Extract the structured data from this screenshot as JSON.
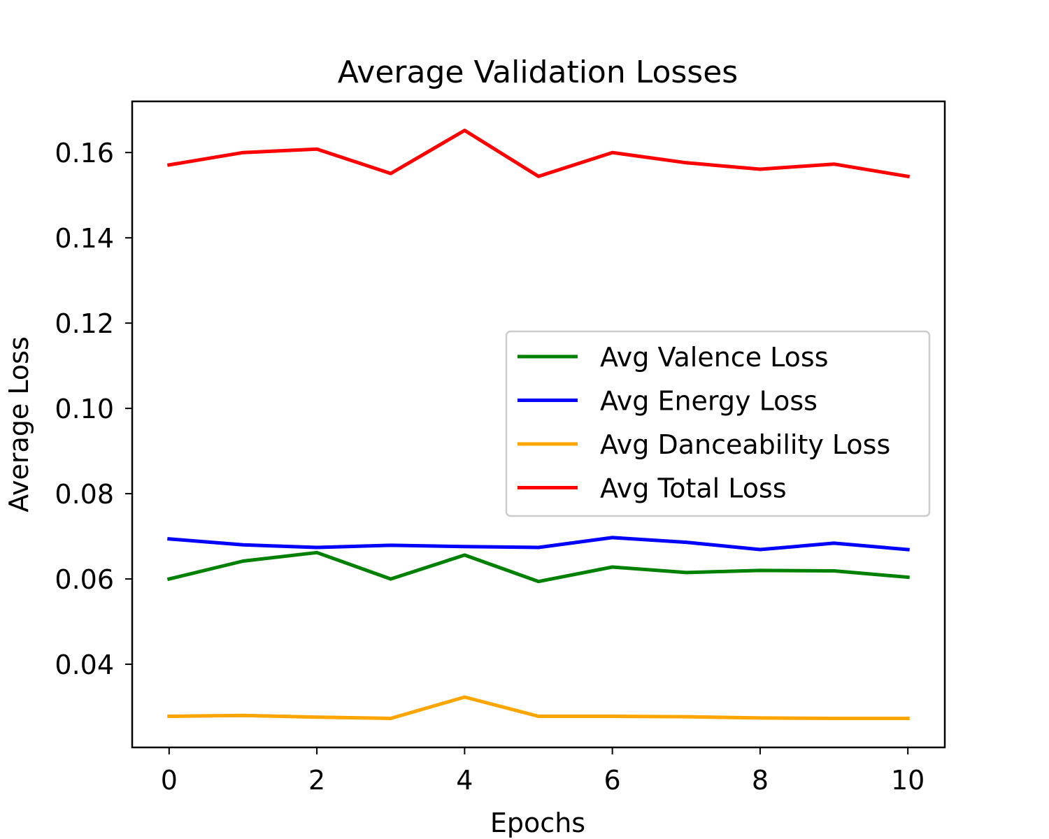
{
  "chart_data": {
    "type": "line",
    "title": "Average Validation Losses",
    "xlabel": "Epochs",
    "ylabel": "Average Loss",
    "xlim": [
      -0.5,
      10.5
    ],
    "ylim": [
      0.0205,
      0.172
    ],
    "x_ticks": [
      0,
      2,
      4,
      6,
      8,
      10
    ],
    "x_tick_labels": [
      "0",
      "2",
      "4",
      "6",
      "8",
      "10"
    ],
    "y_ticks": [
      0.04,
      0.06,
      0.08,
      0.1,
      0.12,
      0.14,
      0.16
    ],
    "y_tick_labels": [
      "0.04",
      "0.06",
      "0.08",
      "0.10",
      "0.12",
      "0.14",
      "0.16"
    ],
    "grid": false,
    "legend_position": "center-right",
    "x": [
      0,
      1,
      2,
      3,
      4,
      5,
      6,
      7,
      8,
      9,
      10
    ],
    "series": [
      {
        "name": "Avg Valence Loss",
        "color": "#008000",
        "values": [
          0.06,
          0.0642,
          0.0662,
          0.06,
          0.0656,
          0.0594,
          0.0628,
          0.0615,
          0.062,
          0.0619,
          0.0604
        ]
      },
      {
        "name": "Avg Energy Loss",
        "color": "#0000ff",
        "values": [
          0.0694,
          0.068,
          0.0674,
          0.0679,
          0.0676,
          0.0674,
          0.0697,
          0.0686,
          0.0669,
          0.0684,
          0.0669
        ]
      },
      {
        "name": "Avg Danceability Loss",
        "color": "#ffa500",
        "values": [
          0.0278,
          0.028,
          0.0276,
          0.0273,
          0.0323,
          0.0278,
          0.0278,
          0.0277,
          0.0274,
          0.0273,
          0.0273
        ]
      },
      {
        "name": "Avg Total Loss",
        "color": "#ff0000",
        "values": [
          0.1571,
          0.16,
          0.1608,
          0.1551,
          0.1652,
          0.1544,
          0.16,
          0.1576,
          0.1561,
          0.1573,
          0.1544
        ]
      }
    ]
  }
}
